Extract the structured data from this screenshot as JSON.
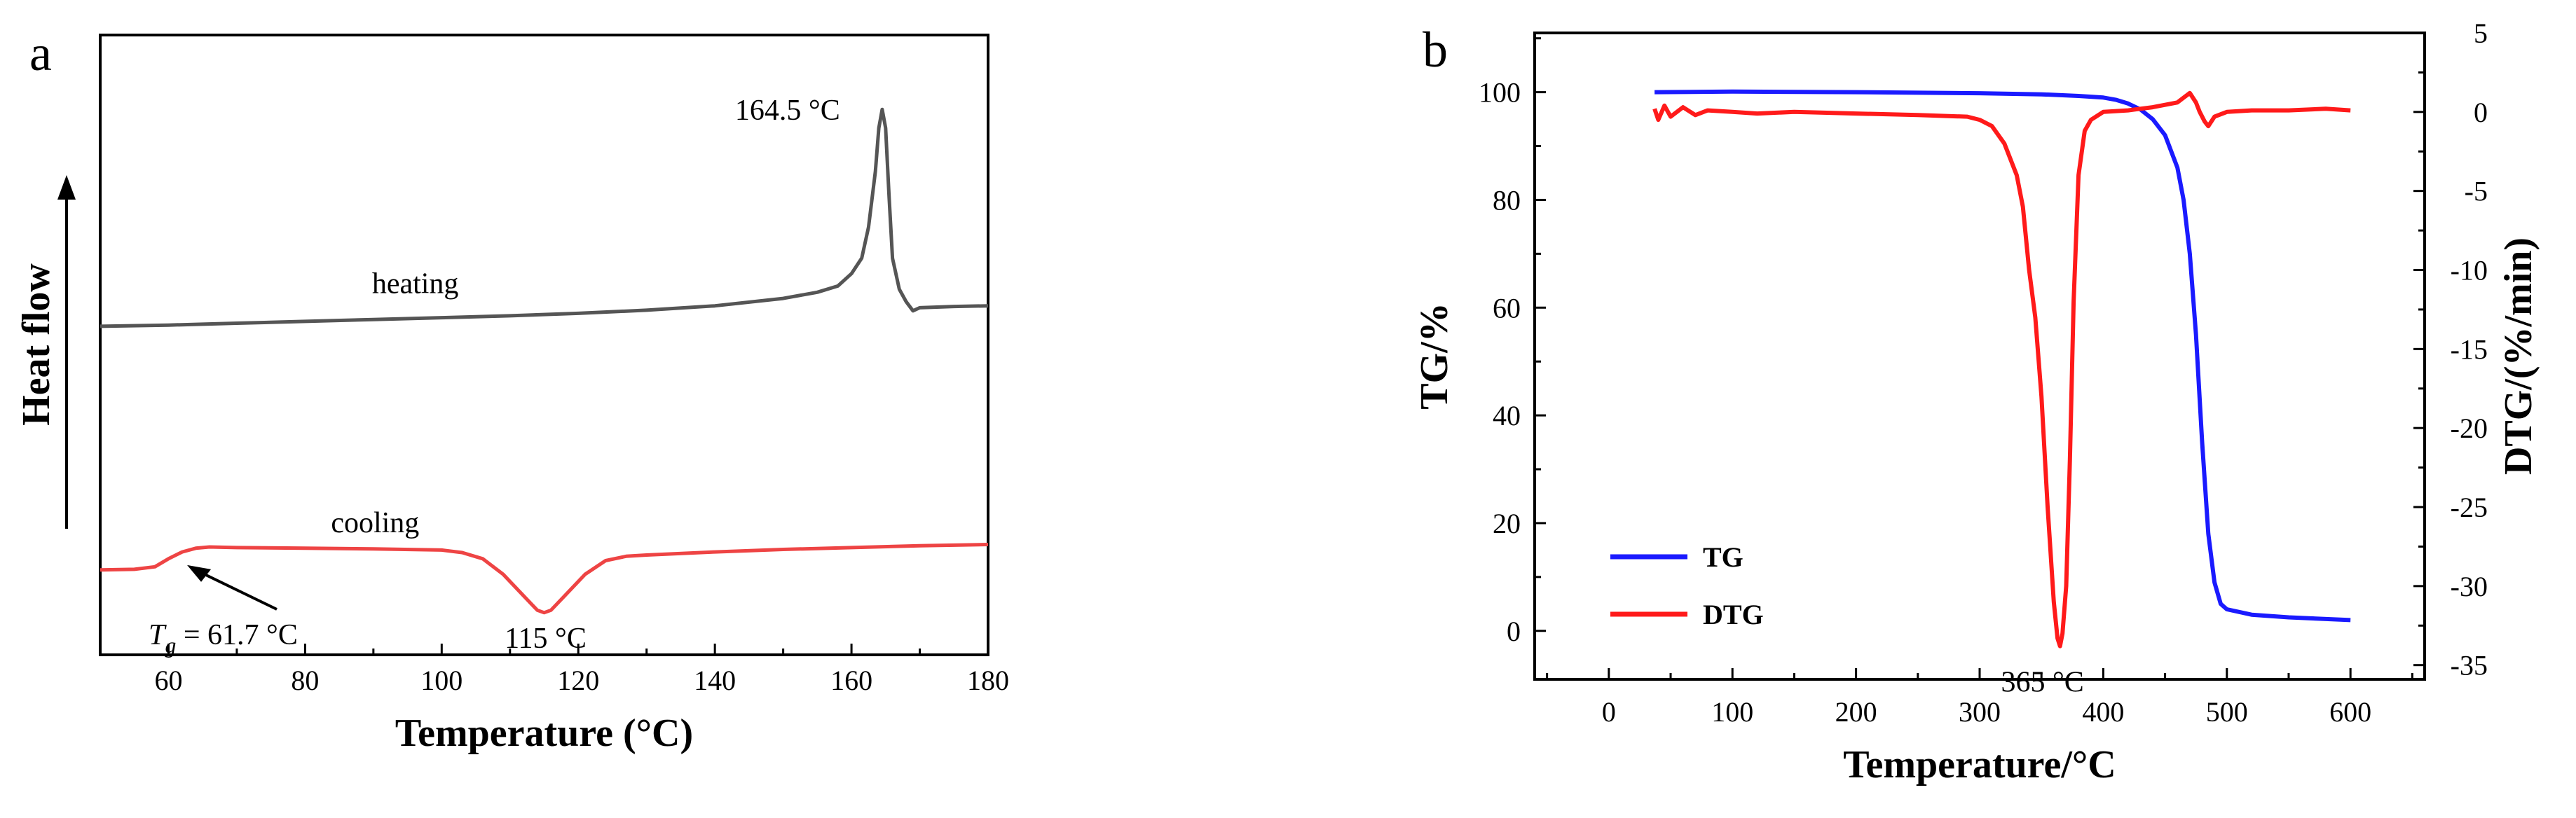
{
  "chart_data": [
    {
      "type": "line",
      "panel_label": "a",
      "xlabel": "Temperature (°C)",
      "ylabel": "Heat flow",
      "xlim": [
        50,
        180
      ],
      "xticks": [
        60,
        80,
        100,
        120,
        140,
        160,
        180
      ],
      "ylim": [
        0,
        100
      ],
      "series": [
        {
          "name": "heating",
          "color": "#555555",
          "points": [
            [
              50,
              53
            ],
            [
              60,
              53.2
            ],
            [
              70,
              53.5
            ],
            [
              80,
              53.8
            ],
            [
              90,
              54.1
            ],
            [
              100,
              54.4
            ],
            [
              110,
              54.7
            ],
            [
              120,
              55.1
            ],
            [
              130,
              55.6
            ],
            [
              140,
              56.3
            ],
            [
              150,
              57.5
            ],
            [
              155,
              58.5
            ],
            [
              158,
              59.5
            ],
            [
              160,
              61.5
            ],
            [
              161.5,
              64
            ],
            [
              162.5,
              69
            ],
            [
              163.5,
              78
            ],
            [
              164,
              85
            ],
            [
              164.5,
              88
            ],
            [
              165,
              85
            ],
            [
              165.5,
              74
            ],
            [
              166,
              64
            ],
            [
              167,
              59
            ],
            [
              168,
              57
            ],
            [
              169,
              55.5
            ],
            [
              170,
              56
            ],
            [
              175,
              56.2
            ],
            [
              180,
              56.3
            ]
          ]
        },
        {
          "name": "cooling",
          "color": "#ee4444",
          "points": [
            [
              50,
              13.7
            ],
            [
              55,
              13.8
            ],
            [
              58,
              14.2
            ],
            [
              60,
              15.5
            ],
            [
              62,
              16.6
            ],
            [
              64,
              17.2
            ],
            [
              66,
              17.4
            ],
            [
              70,
              17.3
            ],
            [
              80,
              17.2
            ],
            [
              90,
              17.1
            ],
            [
              100,
              16.9
            ],
            [
              103,
              16.5
            ],
            [
              106,
              15.5
            ],
            [
              109,
              13
            ],
            [
              112,
              9.5
            ],
            [
              114,
              7.2
            ],
            [
              115,
              6.8
            ],
            [
              116,
              7.2
            ],
            [
              118,
              9.5
            ],
            [
              121,
              13
            ],
            [
              124,
              15.2
            ],
            [
              127,
              15.9
            ],
            [
              130,
              16.1
            ],
            [
              140,
              16.6
            ],
            [
              150,
              17
            ],
            [
              160,
              17.3
            ],
            [
              170,
              17.6
            ],
            [
              180,
              17.8
            ]
          ]
        }
      ],
      "annotations": [
        {
          "text": "164.5 °C",
          "x": 164.5,
          "y": 88
        },
        {
          "text": "heating",
          "x": 98,
          "y": 55
        },
        {
          "text": "cooling",
          "x": 92,
          "y": 17.5
        },
        {
          "text_main": "T",
          "text_sub": "g",
          "text_rest": " = 61.7 °C",
          "x": 61.7,
          "y": 15.5
        },
        {
          "text": "115 °C",
          "x": 115,
          "y": 6.8
        }
      ]
    },
    {
      "type": "line",
      "panel_label": "b",
      "xlabel": "Temperature/°C",
      "ylabel_left": "TG/%",
      "ylabel_right": "DTG/(%/min)",
      "xlim": [
        -60,
        660
      ],
      "xticks": [
        0,
        100,
        200,
        300,
        400,
        500,
        600
      ],
      "ylim_left": [
        -9,
        111
      ],
      "yticks_left": [
        0,
        20,
        40,
        60,
        80,
        100
      ],
      "ylim_right": [
        -35.9,
        5
      ],
      "yticks_right": [
        5,
        0,
        -5,
        -10,
        -15,
        -20,
        -25,
        -30,
        -35
      ],
      "series": [
        {
          "name": "TG",
          "axis": "left",
          "color": "#1a1aff",
          "points": [
            [
              37,
              100
            ],
            [
              100,
              100.1
            ],
            [
              200,
              100
            ],
            [
              300,
              99.8
            ],
            [
              350,
              99.6
            ],
            [
              380,
              99.3
            ],
            [
              400,
              99
            ],
            [
              410,
              98.6
            ],
            [
              420,
              97.9
            ],
            [
              430,
              96.8
            ],
            [
              440,
              95
            ],
            [
              450,
              92
            ],
            [
              460,
              86
            ],
            [
              465,
              80
            ],
            [
              470,
              70
            ],
            [
              475,
              55
            ],
            [
              480,
              35
            ],
            [
              485,
              18
            ],
            [
              490,
              9
            ],
            [
              495,
              5
            ],
            [
              500,
              4
            ],
            [
              520,
              3
            ],
            [
              550,
              2.5
            ],
            [
              600,
              2
            ]
          ]
        },
        {
          "name": "DTG",
          "axis": "right",
          "color": "#ff1a1a",
          "points": [
            [
              37,
              0.2
            ],
            [
              40,
              -0.5
            ],
            [
              45,
              0.4
            ],
            [
              50,
              -0.3
            ],
            [
              60,
              0.3
            ],
            [
              70,
              -0.2
            ],
            [
              80,
              0.1
            ],
            [
              100,
              0
            ],
            [
              120,
              -0.1
            ],
            [
              150,
              0
            ],
            [
              200,
              -0.1
            ],
            [
              250,
              -0.2
            ],
            [
              290,
              -0.3
            ],
            [
              300,
              -0.5
            ],
            [
              310,
              -0.9
            ],
            [
              320,
              -2
            ],
            [
              330,
              -4
            ],
            [
              335,
              -6
            ],
            [
              340,
              -10
            ],
            [
              345,
              -13
            ],
            [
              350,
              -18
            ],
            [
              355,
              -25
            ],
            [
              360,
              -31
            ],
            [
              363,
              -33.3
            ],
            [
              365,
              -33.8
            ],
            [
              367,
              -33
            ],
            [
              370,
              -30
            ],
            [
              373,
              -22
            ],
            [
              376,
              -12
            ],
            [
              380,
              -4
            ],
            [
              385,
              -1.2
            ],
            [
              390,
              -0.5
            ],
            [
              400,
              0
            ],
            [
              420,
              0.1
            ],
            [
              440,
              0.3
            ],
            [
              460,
              0.6
            ],
            [
              465,
              0.9
            ],
            [
              470,
              1.2
            ],
            [
              475,
              0.6
            ],
            [
              478,
              0
            ],
            [
              482,
              -0.6
            ],
            [
              485,
              -0.9
            ],
            [
              490,
              -0.3
            ],
            [
              500,
              0
            ],
            [
              520,
              0.1
            ],
            [
              550,
              0.1
            ],
            [
              580,
              0.2
            ],
            [
              600,
              0.1
            ]
          ]
        }
      ],
      "legend": {
        "placement": "bottom-left",
        "entries": [
          "TG",
          "DTG"
        ]
      },
      "annotations": [
        {
          "text": "365 °C",
          "x": 365,
          "axis": "right",
          "y": -33.8
        }
      ]
    }
  ]
}
